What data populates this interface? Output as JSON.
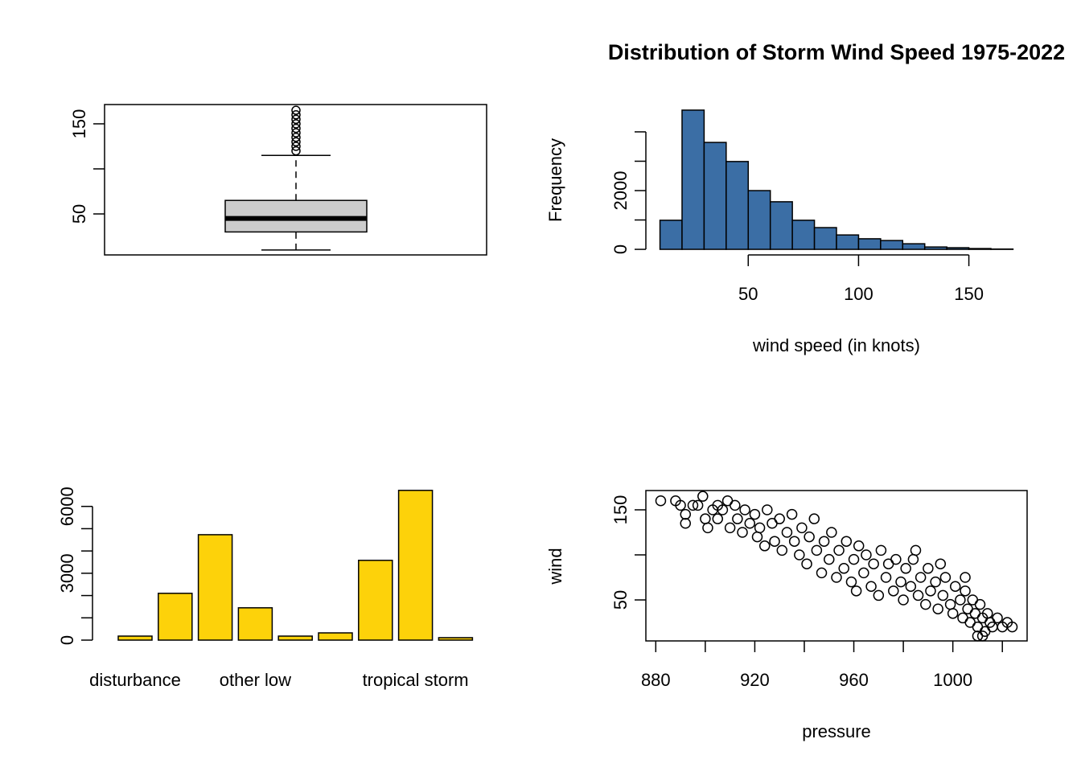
{
  "chart_data": [
    {
      "type": "box",
      "ylim": [
        4.5,
        171.4
      ],
      "yticks": [
        50,
        150
      ],
      "minor_yticks": [
        100
      ],
      "whisker_low": 10,
      "q1": 30,
      "median": 45,
      "q3": 65,
      "whisker_high": 115,
      "outliers": [
        120,
        125,
        130,
        135,
        140,
        145,
        150,
        155,
        160,
        165
      ],
      "color": "#cccccc"
    },
    {
      "type": "histogram",
      "title": "Distribution of Storm Wind Speed 1975-2022",
      "xlabel": "wind speed (in knots)",
      "ylabel": "Frequency",
      "bins": [
        10,
        20,
        30,
        40,
        50,
        60,
        70,
        80,
        90,
        100,
        110,
        120,
        130,
        140,
        150,
        160,
        170
      ],
      "counts": [
        990,
        4740,
        3640,
        2990,
        2000,
        1620,
        990,
        740,
        490,
        360,
        300,
        190,
        80,
        55,
        27,
        10
      ],
      "color": "#3b6ea5",
      "xlim": [
        3.6,
        176.4
      ],
      "ylim": [
        -190,
        4930
      ],
      "xticks": [
        50,
        100,
        150
      ],
      "yticks": [
        0,
        2000
      ],
      "minor_yticks": [
        1000,
        3000,
        4000
      ]
    },
    {
      "type": "bar",
      "categories": [
        "disturbance",
        null,
        null,
        "other low",
        null,
        null,
        null,
        "tropical storm",
        null
      ],
      "values": [
        180,
        2100,
        4730,
        1450,
        180,
        325,
        3580,
        6720,
        110
      ],
      "color": "#fdd20a",
      "ylim": [
        0,
        7000
      ],
      "yticks": [
        0,
        3000,
        6000
      ],
      "minor_yticks": [
        1000,
        2000,
        4000,
        5000
      ]
    },
    {
      "type": "scatter",
      "xlabel": "pressure",
      "ylabel": "wind",
      "x": [
        882,
        888,
        890,
        892,
        892,
        895,
        897,
        899,
        900,
        901,
        903,
        905,
        905,
        907,
        909,
        910,
        912,
        913,
        915,
        916,
        918,
        920,
        921,
        922,
        924,
        925,
        927,
        928,
        930,
        931,
        933,
        935,
        936,
        938,
        939,
        941,
        942,
        944,
        945,
        947,
        948,
        950,
        951,
        953,
        954,
        956,
        957,
        959,
        960,
        961,
        962,
        964,
        965,
        967,
        968,
        970,
        971,
        973,
        974,
        976,
        977,
        979,
        980,
        981,
        983,
        984,
        986,
        987,
        989,
        990,
        991,
        993,
        994,
        996,
        997,
        999,
        1000,
        1001,
        1003,
        1004,
        1005,
        1006,
        1007,
        1008,
        1009,
        1010,
        1011,
        1012,
        1013,
        1014,
        1015,
        1016,
        1018,
        1020,
        1022,
        1024,
        1010,
        1012,
        995,
        1005,
        985
      ],
      "y": [
        160,
        160,
        155,
        145,
        135,
        155,
        155,
        165,
        140,
        130,
        150,
        155,
        140,
        150,
        160,
        130,
        155,
        140,
        125,
        150,
        135,
        145,
        120,
        130,
        110,
        150,
        135,
        115,
        140,
        105,
        125,
        145,
        115,
        100,
        130,
        90,
        120,
        140,
        105,
        80,
        115,
        95,
        125,
        75,
        105,
        85,
        115,
        70,
        95,
        60,
        110,
        80,
        100,
        65,
        90,
        55,
        105,
        75,
        90,
        60,
        95,
        70,
        50,
        85,
        65,
        95,
        55,
        75,
        45,
        85,
        60,
        70,
        40,
        55,
        75,
        45,
        35,
        65,
        50,
        30,
        60,
        40,
        25,
        50,
        35,
        20,
        45,
        30,
        15,
        35,
        25,
        20,
        30,
        20,
        25,
        20,
        10,
        10,
        90,
        75,
        105
      ],
      "xlim": [
        876,
        1030
      ],
      "ylim": [
        4.5,
        171.4
      ],
      "xticks": [
        880,
        920,
        960,
        1000
      ],
      "minor_xticks": [
        900,
        940,
        980,
        1020
      ],
      "yticks": [
        50,
        150
      ],
      "minor_yticks": [
        100
      ]
    }
  ]
}
